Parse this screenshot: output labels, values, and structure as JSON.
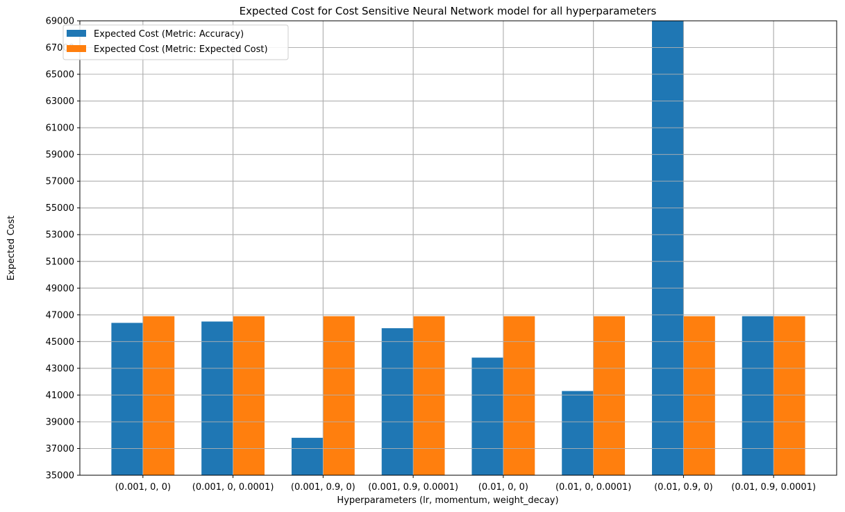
{
  "chart_data": {
    "type": "bar",
    "title": "Expected Cost for Cost Sensitive Neural Network model for all hyperparameters",
    "xlabel": "Hyperparameters (lr, momentum, weight_decay)",
    "ylabel": "Expected Cost",
    "categories": [
      "(0.001, 0, 0)",
      "(0.001, 0, 0.0001)",
      "(0.001, 0.9, 0)",
      "(0.001, 0.9, 0.0001)",
      "(0.01, 0, 0)",
      "(0.01, 0, 0.0001)",
      "(0.01, 0.9, 0)",
      "(0.01, 0.9, 0.0001)"
    ],
    "series": [
      {
        "name": "Expected Cost (Metric: Accuracy)",
        "color": "#1f77b4",
        "values": [
          46400,
          46500,
          37800,
          46000,
          43800,
          41300,
          69000,
          46900
        ]
      },
      {
        "name": "Expected Cost (Metric: Expected Cost)",
        "color": "#ff7f0e",
        "values": [
          46900,
          46900,
          46900,
          46900,
          46900,
          46900,
          46900,
          46900
        ]
      }
    ],
    "ylim": [
      35000,
      69000
    ],
    "yticks": [
      35000,
      37000,
      39000,
      41000,
      43000,
      45000,
      47000,
      49000,
      51000,
      53000,
      55000,
      57000,
      59000,
      61000,
      63000,
      65000,
      67000,
      69000
    ],
    "grid": true,
    "legend_position": "top-left"
  }
}
